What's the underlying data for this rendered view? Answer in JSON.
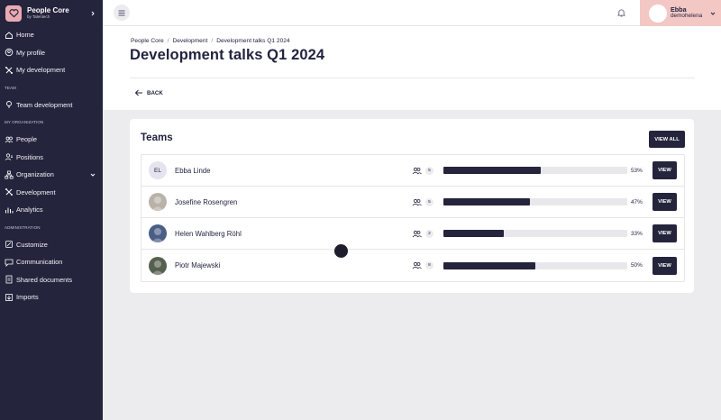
{
  "brand": {
    "name": "People Core",
    "sub": "by Talentech"
  },
  "sidebar": {
    "groups": [
      {
        "section": "",
        "items": [
          {
            "label": "Home",
            "icon": "home-icon"
          },
          {
            "label": "My profile",
            "icon": "profile-icon"
          },
          {
            "label": "My development",
            "icon": "development-icon"
          }
        ]
      },
      {
        "section": "TEAM",
        "items": [
          {
            "label": "Team development",
            "icon": "team-development-icon"
          }
        ]
      },
      {
        "section": "MY ORGANIZATION",
        "items": [
          {
            "label": "People",
            "icon": "people-icon"
          },
          {
            "label": "Positions",
            "icon": "positions-icon"
          },
          {
            "label": "Organization",
            "icon": "organization-icon",
            "expandable": true
          },
          {
            "label": "Development",
            "icon": "development-icon"
          },
          {
            "label": "Analytics",
            "icon": "analytics-icon"
          }
        ]
      },
      {
        "section": "ADMINISTRATION",
        "items": [
          {
            "label": "Customize",
            "icon": "customize-icon"
          },
          {
            "label": "Communication",
            "icon": "communication-icon"
          },
          {
            "label": "Shared documents",
            "icon": "documents-icon"
          },
          {
            "label": "Imports",
            "icon": "imports-icon"
          }
        ]
      }
    ]
  },
  "user": {
    "name": "Ebba",
    "handle": "demohelena"
  },
  "breadcrumb": [
    "People Core",
    "Development",
    "Development talks Q1 2024"
  ],
  "page_title": "Development talks Q1 2024",
  "back_label": "BACK",
  "teams": {
    "title": "Teams",
    "view_all_label": "VIEW ALL",
    "view_label": "VIEW",
    "rows": [
      {
        "name": "Ebba Linde",
        "initials": "EL",
        "count": "5",
        "progress": 53,
        "percent_label": "53%",
        "avatar_color": "#e4e3ee"
      },
      {
        "name": "Josefine Rosengren",
        "initials": "",
        "count": "5",
        "progress": 47,
        "percent_label": "47%",
        "avatar_color": "#b9b2a8"
      },
      {
        "name": "Helen Wahlberg Röhl",
        "initials": "",
        "count": "2",
        "progress": 33,
        "percent_label": "33%",
        "avatar_color": "#4a5e86"
      },
      {
        "name": "Piotr Majewski",
        "initials": "",
        "count": "8",
        "progress": 50,
        "percent_label": "50%",
        "avatar_color": "#56604f"
      }
    ]
  }
}
